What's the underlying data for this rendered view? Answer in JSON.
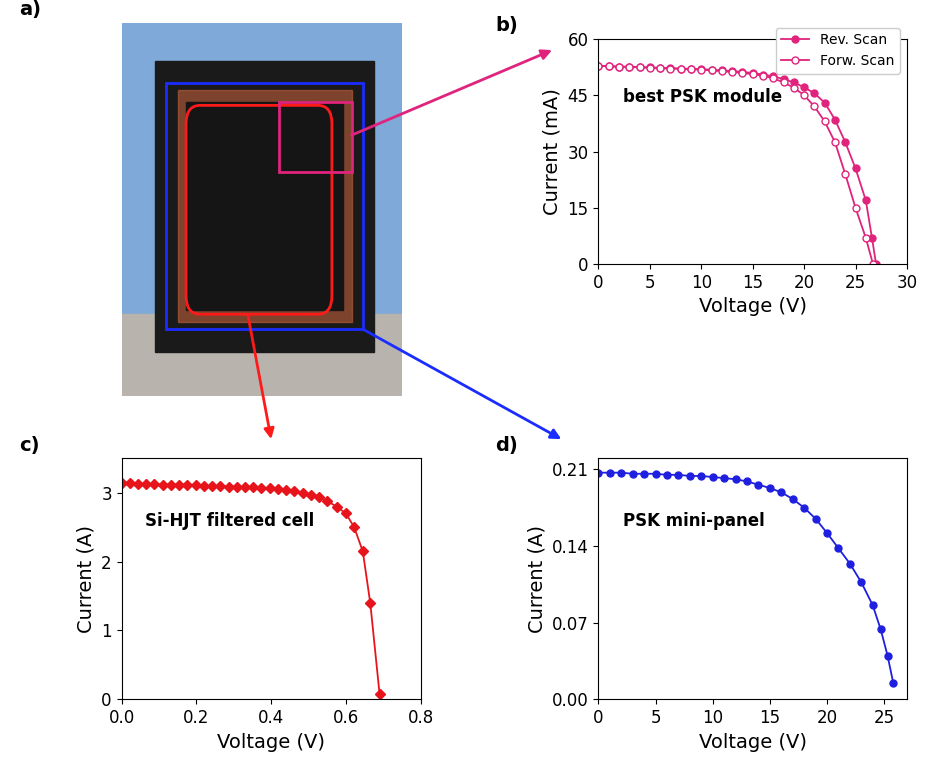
{
  "chart_data": [
    {
      "type": "image",
      "title": "a)"
    },
    {
      "type": "line",
      "title": "b)",
      "annotation": "best PSK module",
      "x_label": "Voltage (V)",
      "y_label": "Current (mA)",
      "xlim": [
        0,
        30
      ],
      "xticks": [
        0,
        5,
        10,
        15,
        20,
        25,
        30
      ],
      "ylim": [
        0,
        60
      ],
      "yticks": [
        0,
        15,
        30,
        45,
        60
      ],
      "legend": "upper right",
      "series": [
        {
          "name": "Rev. Scan",
          "color": "#e0237c",
          "marker": "circle",
          "x": [
            0,
            1,
            2,
            3,
            4,
            5,
            6,
            7,
            8,
            9,
            10,
            11,
            12,
            13,
            14,
            15,
            16,
            17,
            18,
            19,
            20,
            21,
            22,
            23,
            24,
            25,
            26,
            26.6,
            27
          ],
          "values": [
            52.8,
            52.7,
            52.6,
            52.6,
            52.5,
            52.4,
            52.3,
            52.2,
            52.1,
            52.0,
            51.9,
            51.8,
            51.6,
            51.4,
            51.2,
            50.9,
            50.5,
            50.0,
            49.3,
            48.4,
            47.1,
            45.5,
            43.0,
            38.5,
            32.5,
            25.5,
            17.0,
            7.0,
            0
          ]
        },
        {
          "name": "Forw. Scan",
          "color": "#e0237c",
          "marker": "open circle",
          "x": [
            0,
            1,
            2,
            3,
            4,
            5,
            6,
            7,
            8,
            9,
            10,
            11,
            12,
            13,
            14,
            15,
            16,
            17,
            18,
            19,
            20,
            21,
            22,
            23,
            24,
            25,
            26,
            26.7
          ],
          "values": [
            52.8,
            52.7,
            52.6,
            52.5,
            52.4,
            52.3,
            52.2,
            52.1,
            52.0,
            51.9,
            51.8,
            51.6,
            51.4,
            51.2,
            50.9,
            50.6,
            50.2,
            49.5,
            48.4,
            47.0,
            45.0,
            42.0,
            38.0,
            32.5,
            24.0,
            15.0,
            7.0,
            0
          ]
        }
      ]
    },
    {
      "type": "line",
      "title": "c)",
      "annotation": "Si-HJT filtered cell",
      "x_label": "Voltage (V)",
      "y_label": "Current (A)",
      "xlim": [
        0,
        0.8
      ],
      "xticks": [
        {
          "value": 0,
          "label": "0.0"
        },
        {
          "value": 0.2,
          "label": "0.2"
        },
        {
          "value": 0.4,
          "label": "0.4"
        },
        {
          "value": 0.6,
          "label": "0.6"
        },
        {
          "value": 0.8,
          "label": "0.8"
        }
      ],
      "ylim": [
        0,
        3.5
      ],
      "yticks": [
        0,
        1,
        2,
        3
      ],
      "series": [
        {
          "name": "Si-HJT filtered cell",
          "color": "#e8141c",
          "marker": "diamond",
          "x": [
            0,
            0.022,
            0.044,
            0.066,
            0.088,
            0.11,
            0.132,
            0.154,
            0.176,
            0.198,
            0.22,
            0.242,
            0.264,
            0.286,
            0.308,
            0.33,
            0.352,
            0.374,
            0.396,
            0.418,
            0.44,
            0.462,
            0.484,
            0.506,
            0.528,
            0.55,
            0.575,
            0.6,
            0.622,
            0.645,
            0.665,
            0.69
          ],
          "values": [
            3.14,
            3.14,
            3.13,
            3.13,
            3.13,
            3.12,
            3.12,
            3.12,
            3.12,
            3.11,
            3.1,
            3.1,
            3.1,
            3.09,
            3.09,
            3.08,
            3.08,
            3.07,
            3.07,
            3.06,
            3.04,
            3.02,
            3.0,
            2.97,
            2.94,
            2.88,
            2.8,
            2.7,
            2.5,
            2.15,
            1.4,
            0.07
          ]
        }
      ]
    },
    {
      "type": "line",
      "title": "d)",
      "annotation": "PSK mini-panel",
      "x_label": "Voltage (V)",
      "y_label": "Current (A)",
      "xlim": [
        0,
        27
      ],
      "xticks": [
        0,
        5,
        10,
        15,
        20,
        25
      ],
      "ylim": [
        0,
        0.22
      ],
      "yticks": [
        {
          "value": 0,
          "label": "0.00"
        },
        {
          "value": 0.07,
          "label": "0.07"
        },
        {
          "value": 0.14,
          "label": "0.14"
        },
        {
          "value": 0.21,
          "label": "0.21"
        }
      ],
      "series": [
        {
          "name": "PSK mini-panel",
          "color": "#1f1fe0",
          "marker": "circle",
          "x": [
            0,
            1,
            2,
            3,
            4,
            5,
            6,
            7,
            8,
            9,
            10,
            11,
            12,
            13,
            14,
            15,
            16,
            17,
            18,
            19,
            20,
            21,
            22,
            23,
            24,
            24.7,
            25.3,
            25.8
          ],
          "values": [
            0.207,
            0.207,
            0.207,
            0.206,
            0.206,
            0.206,
            0.205,
            0.205,
            0.204,
            0.204,
            0.203,
            0.202,
            0.201,
            0.199,
            0.196,
            0.193,
            0.189,
            0.183,
            0.175,
            0.165,
            0.152,
            0.138,
            0.124,
            0.107,
            0.086,
            0.064,
            0.04,
            0.015
          ]
        }
      ]
    }
  ]
}
